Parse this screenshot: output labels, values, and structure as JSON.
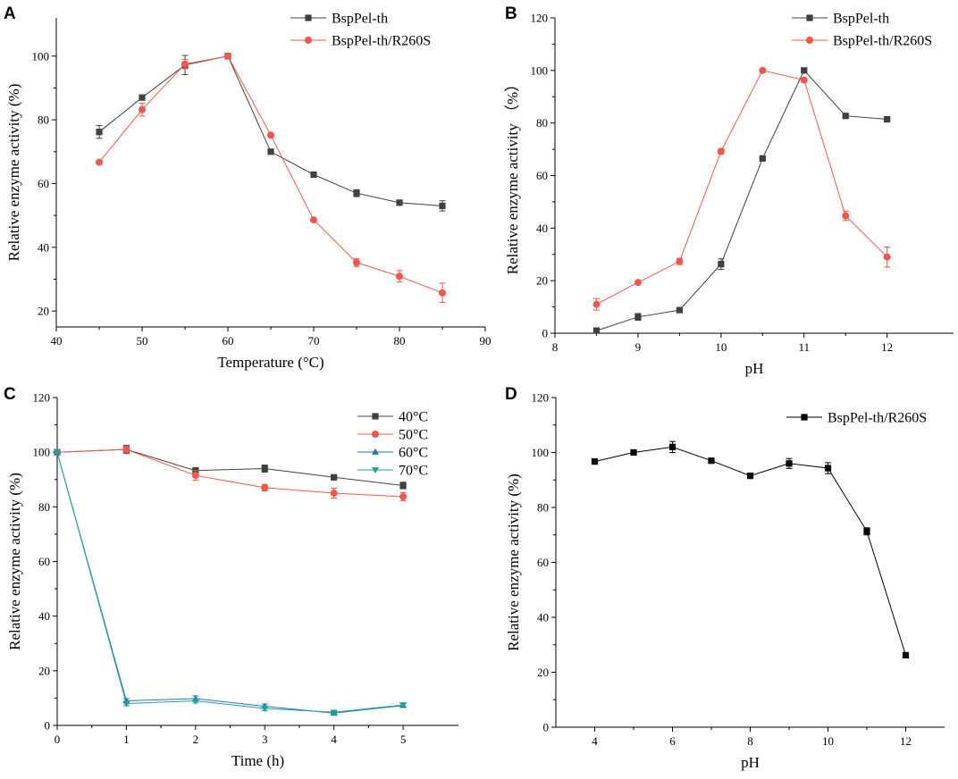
{
  "figure_title": "",
  "chart_data": [
    {
      "panel": "A",
      "type": "line",
      "xlabel": "Temperature (°C)",
      "ylabel": "Relative enzyme activity (%)",
      "xlim": [
        40,
        90
      ],
      "ylim": [
        15,
        112
      ],
      "xticks": [
        40,
        50,
        60,
        70,
        80,
        90
      ],
      "yticks": [
        20,
        40,
        60,
        80,
        100
      ],
      "legend_position": "top-right",
      "series": [
        {
          "name": "BspPel-th",
          "color": "#404040",
          "marker": "square",
          "x": [
            45,
            50,
            55,
            60,
            65,
            70,
            75,
            80,
            85
          ],
          "y": [
            76.2,
            87,
            97.2,
            100,
            70,
            62.8,
            57,
            54,
            53
          ],
          "err": [
            2,
            0.6,
            3,
            0.4,
            0.5,
            0.6,
            1.1,
            0.6,
            1.6
          ]
        },
        {
          "name": "BspPel-th/R260S",
          "color": "#f0564b",
          "marker": "circle",
          "x": [
            45,
            50,
            55,
            60,
            65,
            70,
            75,
            80,
            85
          ],
          "y": [
            66.7,
            83.2,
            97.5,
            100,
            75.2,
            48.6,
            35.2,
            30.9,
            25.7
          ],
          "err": [
            0.5,
            2,
            1.5,
            0.3,
            0.6,
            0.5,
            1.2,
            1.8,
            3
          ]
        }
      ]
    },
    {
      "panel": "B",
      "type": "line",
      "xlabel": "pH",
      "ylabel": "Relative enzyme activity （%）",
      "xlim": [
        8,
        12.8
      ],
      "ylim": [
        0,
        120
      ],
      "xticks": [
        8,
        9,
        10,
        11,
        12
      ],
      "yticks": [
        0,
        20,
        40,
        60,
        80,
        100,
        120
      ],
      "legend_position": "top-right",
      "series": [
        {
          "name": "BspPel-th",
          "color": "#404040",
          "marker": "square",
          "x": [
            8.5,
            9,
            9.5,
            10,
            10.5,
            11,
            11.5,
            12
          ],
          "y": [
            1,
            6.2,
            8.8,
            26.3,
            66.5,
            100,
            82.7,
            81.4
          ],
          "err": [
            0.6,
            1.3,
            0.4,
            2,
            0.4,
            0.4,
            0.5,
            0.5
          ]
        },
        {
          "name": "BspPel-th/R260S",
          "color": "#f0564b",
          "marker": "circle",
          "x": [
            8.5,
            9,
            9.5,
            10,
            10.5,
            11,
            11.5,
            12
          ],
          "y": [
            11,
            19.3,
            27.3,
            69.2,
            100,
            96.3,
            44.7,
            29
          ],
          "err": [
            2.2,
            0.5,
            1.2,
            1,
            0.4,
            0.7,
            1.8,
            3.8
          ]
        }
      ]
    },
    {
      "panel": "C",
      "type": "line",
      "xlabel": "Time (h)",
      "ylabel": "Relative enzyme activity (%)",
      "xlim": [
        0,
        5.8
      ],
      "ylim": [
        0,
        120
      ],
      "xticks": [
        0,
        1,
        2,
        3,
        4,
        5
      ],
      "yticks": [
        0,
        20,
        40,
        60,
        80,
        100,
        120
      ],
      "legend_position": "top-right",
      "series": [
        {
          "name": "40°C",
          "color": "#404040",
          "marker": "square",
          "x": [
            0,
            1,
            2,
            3,
            4,
            5
          ],
          "y": [
            100,
            101,
            93.3,
            94,
            90.8,
            87.8
          ],
          "err": [
            0.3,
            1.5,
            1,
            1.3,
            0.6,
            1.2
          ]
        },
        {
          "name": "50°C",
          "color": "#f0564b",
          "marker": "circle",
          "x": [
            0,
            1,
            2,
            3,
            4,
            5
          ],
          "y": [
            100,
            101,
            91.5,
            87,
            85,
            83.7
          ],
          "err": [
            0.3,
            1.2,
            1.8,
            1.2,
            1.8,
            1.5
          ]
        },
        {
          "name": "60°C",
          "color": "#2a6fc9",
          "marker": "triangle-up",
          "x": [
            0,
            1,
            2,
            3,
            4,
            5
          ],
          "y": [
            100,
            9,
            9.8,
            7,
            4.5,
            7.3
          ],
          "err": [
            0.3,
            0.8,
            1,
            0.8,
            0.6,
            0.7
          ]
        },
        {
          "name": "70°C",
          "color": "#1aa38c",
          "marker": "triangle-down",
          "x": [
            0,
            1,
            2,
            3,
            4,
            5
          ],
          "y": [
            100,
            8,
            9,
            6.2,
            4.8,
            7.5
          ],
          "err": [
            0.3,
            0.8,
            0.8,
            0.8,
            0.6,
            0.6
          ]
        }
      ]
    },
    {
      "panel": "D",
      "type": "line",
      "xlabel": "pH",
      "ylabel": "Relative enzyme activity (%)",
      "xlim": [
        3,
        13
      ],
      "ylim": [
        0,
        120
      ],
      "xticks": [
        4,
        6,
        8,
        10,
        12
      ],
      "yticks": [
        0,
        20,
        40,
        60,
        80,
        100,
        120
      ],
      "legend_position": "top-right",
      "series": [
        {
          "name": "BspPel-th/R260S",
          "color": "#000000",
          "marker": "square",
          "x": [
            4,
            5,
            6,
            7,
            8,
            9,
            10,
            11,
            12
          ],
          "y": [
            96.7,
            100,
            102,
            97,
            91.5,
            96,
            94.3,
            71.3,
            26.2
          ],
          "err": [
            0.5,
            0.5,
            2,
            0.5,
            0.5,
            1.8,
            2,
            1.3,
            0.5
          ]
        }
      ]
    }
  ]
}
